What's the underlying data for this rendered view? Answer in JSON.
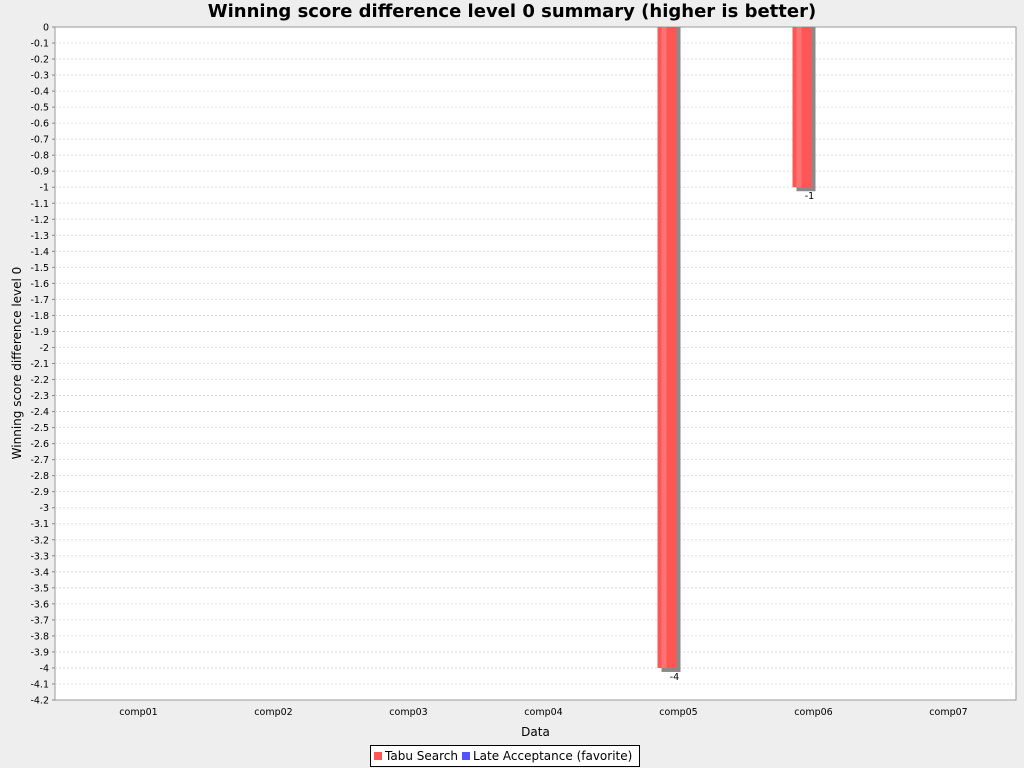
{
  "chart_data": {
    "type": "bar",
    "title": "Winning score difference level 0 summary (higher is better)",
    "xlabel": "Data",
    "ylabel": "Winning score difference level 0",
    "categories": [
      "comp01",
      "comp02",
      "comp03",
      "comp04",
      "comp05",
      "comp06",
      "comp07"
    ],
    "ylim": [
      -4.2,
      0
    ],
    "ytick_step": 0.1,
    "grid": true,
    "legend_position": "bottom-center",
    "series": [
      {
        "name": "Tabu Search",
        "color": "#ff5555",
        "values": [
          0,
          0,
          0,
          0,
          -4,
          -1,
          0
        ]
      },
      {
        "name": "Late Acceptance (favorite)",
        "color": "#5555ff",
        "values": [
          0,
          0,
          0,
          0,
          0,
          0,
          0
        ]
      }
    ],
    "data_labels": [
      {
        "category": "comp05",
        "series": "Tabu Search",
        "text": "-4"
      },
      {
        "category": "comp06",
        "series": "Tabu Search",
        "text": "-1"
      }
    ]
  }
}
